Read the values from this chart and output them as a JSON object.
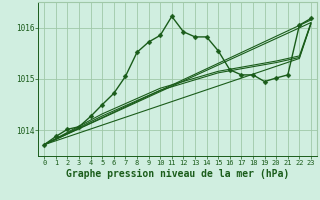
{
  "background_color": "#d0eee0",
  "grid_color": "#a0c8a8",
  "line_color": "#1a5c1a",
  "xlabel": "Graphe pression niveau de la mer (hPa)",
  "xlabel_fontsize": 7,
  "xlim": [
    -0.5,
    23.5
  ],
  "ylim": [
    1013.5,
    1016.5
  ],
  "yticks": [
    1014,
    1015,
    1016
  ],
  "xticks": [
    0,
    1,
    2,
    3,
    4,
    5,
    6,
    7,
    8,
    9,
    10,
    11,
    12,
    13,
    14,
    15,
    16,
    17,
    18,
    19,
    20,
    21,
    22,
    23
  ],
  "series": [
    {
      "x": [
        0,
        1,
        2,
        3,
        4,
        5,
        6,
        7,
        8,
        9,
        10,
        11,
        12,
        13,
        14,
        15,
        16,
        17,
        18,
        19,
        20,
        21,
        22,
        23
      ],
      "y": [
        1013.72,
        1013.88,
        1014.02,
        1014.07,
        1014.27,
        1014.5,
        1014.72,
        1015.05,
        1015.52,
        1015.72,
        1015.85,
        1016.22,
        1015.92,
        1015.82,
        1015.82,
        1015.55,
        1015.18,
        1015.08,
        1015.08,
        1014.95,
        1015.02,
        1015.08,
        1016.05,
        1016.18
      ],
      "marker": "D",
      "markersize": 2.5,
      "linewidth": 1.0
    },
    {
      "x": [
        0,
        23
      ],
      "y": [
        1013.72,
        1016.15
      ],
      "marker": null,
      "markersize": 0,
      "linewidth": 0.8
    },
    {
      "x": [
        0,
        23
      ],
      "y": [
        1013.72,
        1016.1
      ],
      "marker": null,
      "markersize": 0,
      "linewidth": 0.8
    },
    {
      "x": [
        0,
        22,
        23
      ],
      "y": [
        1013.72,
        1015.4,
        1016.08
      ],
      "marker": null,
      "markersize": 0,
      "linewidth": 0.8
    },
    {
      "x": [
        0,
        5,
        10,
        15,
        20,
        22,
        23
      ],
      "y": [
        1013.72,
        1014.28,
        1014.78,
        1015.12,
        1015.32,
        1015.42,
        1016.08
      ],
      "marker": null,
      "markersize": 0,
      "linewidth": 0.8
    },
    {
      "x": [
        0,
        5,
        10,
        15,
        20,
        22,
        23
      ],
      "y": [
        1013.72,
        1014.32,
        1014.82,
        1015.15,
        1015.35,
        1015.45,
        1016.1
      ],
      "marker": null,
      "markersize": 0,
      "linewidth": 0.8
    }
  ]
}
